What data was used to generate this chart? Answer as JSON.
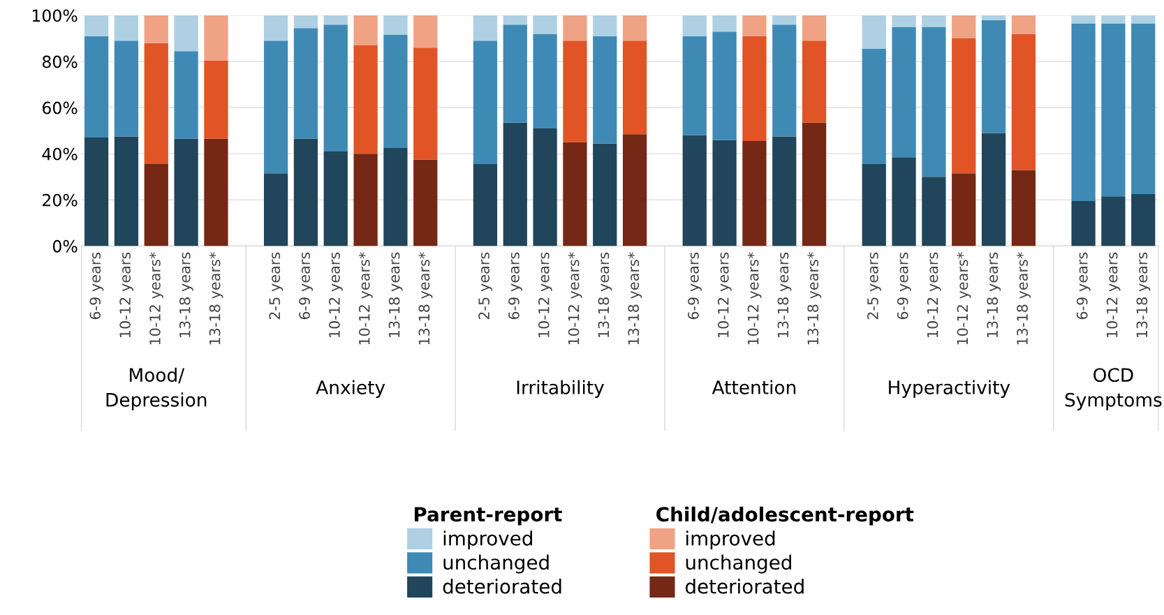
{
  "chart_data": {
    "type": "bar",
    "stacked": true,
    "categories": [
      "6-9 years",
      "10-12 years",
      "10-12 years*",
      "13-18 years",
      "13-18 years*",
      null,
      "2-5 years",
      "6-9 years",
      "10-12 years",
      "10-12 years*",
      "13-18 years",
      "13-18 years*",
      null,
      "2-5 years",
      "6-9 years",
      "10-12 years",
      "10-12 years*",
      "13-18 years",
      "13-18 years*",
      null,
      "6-9 years",
      "10-12 years",
      "10-12 years*",
      "13-18 years",
      "13-18 years*",
      null,
      "2-5 years",
      "6-9 years",
      "10-12 years",
      "10-12 years*",
      "13-18 years",
      "13-18 years*",
      null,
      "6-9 years",
      "10-12 years",
      "13-18 years"
    ],
    "series": [
      {
        "name": "deteriorated",
        "color": "#21455a",
        "values": [
          47,
          47.5,
          null,
          46.5,
          null,
          null,
          31.5,
          46.5,
          41,
          null,
          42.5,
          null,
          null,
          35.5,
          53.5,
          51,
          null,
          44.5,
          null,
          null,
          48,
          46,
          null,
          47.5,
          null,
          null,
          35.5,
          38.5,
          30,
          null,
          49,
          null,
          null,
          19.5,
          21.5,
          22.5
        ]
      },
      {
        "name": "unchanged",
        "color": "#3f8ab5",
        "values": [
          44,
          41.5,
          null,
          38,
          null,
          null,
          57.5,
          48,
          55,
          null,
          49,
          null,
          null,
          53.5,
          42.5,
          41,
          null,
          46.5,
          null,
          null,
          43,
          47,
          null,
          48.5,
          null,
          null,
          50,
          56.5,
          65,
          null,
          49,
          null,
          null,
          77,
          75,
          74
        ]
      },
      {
        "name": "improved",
        "color": "#aed0e2",
        "values": [
          9,
          11,
          null,
          15.5,
          null,
          null,
          11,
          5.5,
          4,
          null,
          8.5,
          null,
          null,
          11,
          4,
          8,
          null,
          9,
          null,
          null,
          9,
          7,
          null,
          4,
          null,
          null,
          14.5,
          5,
          5,
          null,
          2,
          null,
          null,
          3.5,
          3.5,
          3.5
        ]
      },
      {
        "name": "deteriorated",
        "color": "#742815",
        "values": [
          null,
          null,
          35.5,
          null,
          46.5,
          null,
          null,
          null,
          null,
          40,
          null,
          37.5,
          null,
          null,
          null,
          null,
          45,
          null,
          48.5,
          null,
          null,
          null,
          45.5,
          null,
          53.5,
          null,
          null,
          null,
          null,
          31.5,
          null,
          33,
          null,
          null,
          null,
          null
        ]
      },
      {
        "name": "unchanged",
        "color": "#e05426",
        "values": [
          null,
          null,
          52.5,
          null,
          34,
          null,
          null,
          null,
          null,
          47,
          null,
          48.5,
          null,
          null,
          null,
          null,
          44,
          null,
          40.5,
          null,
          null,
          null,
          45.5,
          null,
          35.5,
          null,
          null,
          null,
          null,
          58.5,
          null,
          59,
          null,
          null,
          null,
          null
        ]
      },
      {
        "name": "improved",
        "color": "#f0a285",
        "values": [
          null,
          null,
          12,
          null,
          19.5,
          null,
          null,
          null,
          null,
          13,
          null,
          14,
          null,
          null,
          null,
          null,
          11,
          null,
          11,
          null,
          null,
          null,
          9,
          null,
          11,
          null,
          null,
          null,
          null,
          10,
          null,
          8,
          null,
          null,
          null,
          null
        ]
      }
    ],
    "ylim": [
      0,
      100
    ],
    "yticks": [
      {
        "value": 0,
        "label": "0%"
      },
      {
        "value": 20,
        "label": "20%"
      },
      {
        "value": 40,
        "label": "40%"
      },
      {
        "value": 60,
        "label": "60%"
      },
      {
        "value": 80,
        "label": "80%"
      },
      {
        "value": 100,
        "label": "100%"
      }
    ],
    "grid": "y",
    "legend": "bottom",
    "annotations": [
      "Mood/\nDepression",
      "Anxiety",
      "Irritability",
      "Attention",
      "Hyperactivity",
      "OCD\nSymptoms",
      "Parent-report",
      "Child/adolescent-report"
    ]
  }
}
